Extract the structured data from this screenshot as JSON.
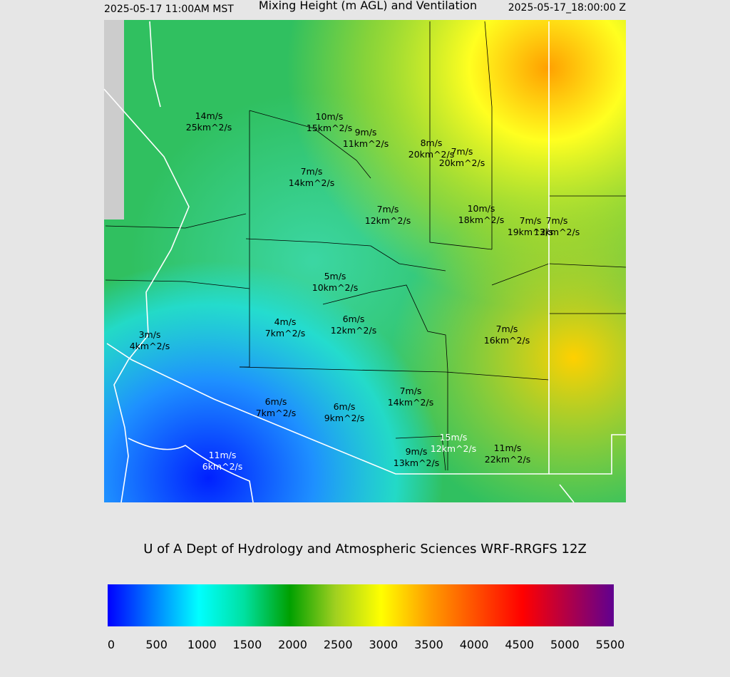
{
  "header": {
    "left": "2025-05-17 11:00AM MST",
    "title": "Mixing Height (m AGL) and Ventilation",
    "right": "2025-05-17_18:00:00 Z"
  },
  "stations": [
    {
      "speed": "14m/s",
      "ventilation": "25km^2/s"
    },
    {
      "speed": "10m/s",
      "ventilation": "15km^2/s"
    },
    {
      "speed": "9m/s",
      "ventilation": "11km^2/s"
    },
    {
      "speed": "8m/s",
      "ventilation": "20km^2/s"
    },
    {
      "speed": "7m/s",
      "ventilation": "20km^2/s"
    },
    {
      "speed": "7m/s",
      "ventilation": "14km^2/s"
    },
    {
      "speed": "7m/s",
      "ventilation": "12km^2/s"
    },
    {
      "speed": "10m/s",
      "ventilation": "18km^2/s"
    },
    {
      "speed": "7m/s",
      "ventilation": "19km^2/s"
    },
    {
      "speed": "7m/s",
      "ventilation": "13km^2/s"
    },
    {
      "speed": "5m/s",
      "ventilation": "10km^2/s"
    },
    {
      "speed": "4m/s",
      "ventilation": "7km^2/s"
    },
    {
      "speed": "6m/s",
      "ventilation": "12km^2/s"
    },
    {
      "speed": "7m/s",
      "ventilation": "16km^2/s"
    },
    {
      "speed": "3m/s",
      "ventilation": "4km^2/s"
    },
    {
      "speed": "7m/s",
      "ventilation": "14km^2/s"
    },
    {
      "speed": "6m/s",
      "ventilation": "7km^2/s"
    },
    {
      "speed": "6m/s",
      "ventilation": "9km^2/s"
    },
    {
      "speed": "15m/s",
      "ventilation": "12km^2/s"
    },
    {
      "speed": "11m/s",
      "ventilation": "22km^2/s"
    },
    {
      "speed": "9m/s",
      "ventilation": "13km^2/s"
    },
    {
      "speed": "11m/s",
      "ventilation": "6km^2/s"
    }
  ],
  "credit": "U of A Dept of Hydrology and Atmospheric Sciences WRF-RRGFS 12Z",
  "colorbar": {
    "lim": [
      0,
      5500
    ],
    "ticks": [
      0,
      500,
      1000,
      1500,
      2000,
      2500,
      3000,
      3500,
      4000,
      4500,
      5000,
      5500
    ]
  }
}
